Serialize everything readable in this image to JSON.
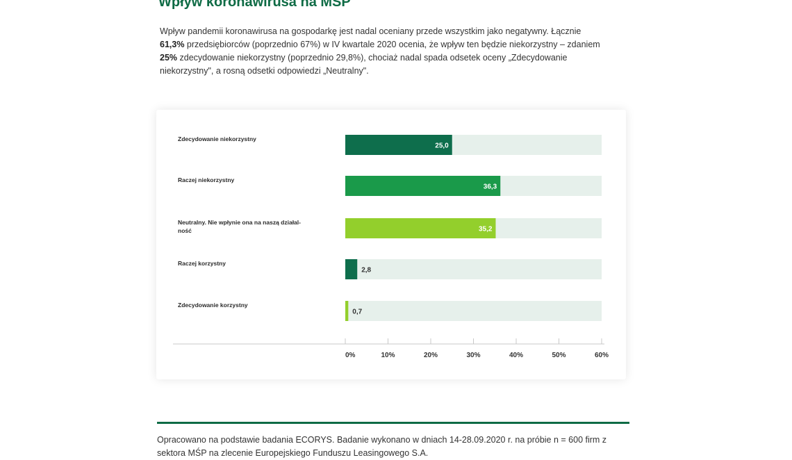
{
  "page": {
    "title": "Wpływ koronawirusa na MŚP",
    "intro": {
      "t1": "Wpływ pandemii koronawirusa na gospodarkę jest nadal oceniany przede wszystkim jako negatywny. Łącznie ",
      "b1": "61,3%",
      "t2": " przedsiębiorców (poprzednio 67%) w IV kwartale 2020 ocenia, że wpływ ten będzie niekorzystny – zdaniem ",
      "b2": "25%",
      "t3": " zdecydowanie niekorzystny (poprzednio 29,8%), chociaż nadal spada odsetek oceny „Zdecydowanie niekorzystny\", a rosną odsetki odpowiedzi „Neutralny\"."
    },
    "footer": "Opracowano na podstawie badania ECORYS. Badanie wykonano w dniach 14-28.09.2020 r. na próbie n = 600 firm z sektora MŚP na zlecenie Europejskiego Funduszu Leasingowego S.A."
  },
  "chart_data": {
    "type": "bar",
    "orientation": "horizontal",
    "categories": [
      "Zdecydowanie niekorzystny",
      "Raczej niekorzystny",
      "Neutralny. Nie wpłynie ona na naszą działal-\nność",
      "Raczej korzystny",
      "Zdecydowanie korzystny"
    ],
    "values": [
      25.0,
      36.3,
      35.2,
      2.8,
      0.7
    ],
    "value_labels": [
      "25,0",
      "36,3",
      "35,2",
      "2,8",
      "0,7"
    ],
    "bar_colors": [
      "#0e6e4c",
      "#1a9a4a",
      "#93cf2c",
      "#0e6e4c",
      "#93cf2c"
    ],
    "track_color": "#e6f0eb",
    "xlim": [
      0,
      60
    ],
    "xticks": [
      0,
      10,
      20,
      30,
      40,
      50,
      60
    ],
    "xtick_labels": [
      "0%",
      "10%",
      "20%",
      "30%",
      "40%",
      "50%",
      "60%"
    ],
    "grid": false
  }
}
